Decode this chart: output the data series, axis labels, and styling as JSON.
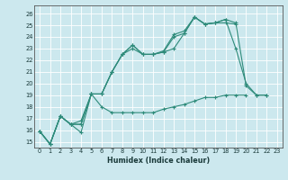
{
  "xlabel": "Humidex (Indice chaleur)",
  "bg_color": "#cce8ee",
  "line_color": "#2e8b7a",
  "grid_color": "#ffffff",
  "xlim": [
    -0.5,
    23.5
  ],
  "ylim": [
    14.5,
    26.7
  ],
  "xtick_labels": [
    "0",
    "1",
    "2",
    "3",
    "4",
    "5",
    "6",
    "7",
    "8",
    "9",
    "10",
    "11",
    "12",
    "13",
    "14",
    "15",
    "16",
    "17",
    "18",
    "19",
    "20",
    "21",
    "22",
    "23"
  ],
  "ytick_labels": [
    "15",
    "16",
    "17",
    "18",
    "19",
    "20",
    "21",
    "22",
    "23",
    "24",
    "25",
    "26"
  ],
  "series": [
    {
      "x": [
        0,
        1,
        2,
        3,
        4,
        5,
        6,
        7,
        8,
        9,
        10,
        11,
        12,
        13,
        14,
        15,
        16,
        17,
        18,
        19
      ],
      "y": [
        15.9,
        14.8,
        17.2,
        16.5,
        16.8,
        19.1,
        19.1,
        21.0,
        22.5,
        23.3,
        22.5,
        22.5,
        22.7,
        23.0,
        24.3,
        25.7,
        25.1,
        25.2,
        25.2,
        25.1
      ]
    },
    {
      "x": [
        0,
        1,
        2,
        3,
        4,
        5,
        6,
        7,
        8,
        9,
        10,
        11,
        12,
        13,
        14,
        15,
        16,
        17,
        18,
        19,
        20,
        21,
        22
      ],
      "y": [
        15.9,
        14.8,
        17.2,
        16.5,
        16.5,
        19.1,
        19.1,
        21.0,
        22.5,
        23.0,
        22.5,
        22.5,
        22.7,
        24.0,
        24.3,
        25.7,
        25.1,
        25.2,
        25.5,
        25.2,
        19.8,
        19.0,
        19.0
      ]
    },
    {
      "x": [
        0,
        1,
        2,
        3,
        4,
        5,
        6,
        7,
        8,
        9,
        10,
        11,
        12,
        13,
        14,
        15,
        16,
        17,
        18,
        19,
        20,
        21,
        22
      ],
      "y": [
        15.9,
        14.8,
        17.2,
        16.5,
        15.8,
        19.1,
        19.1,
        21.0,
        22.5,
        23.3,
        22.5,
        22.5,
        22.8,
        24.2,
        24.5,
        25.7,
        25.1,
        25.2,
        25.5,
        23.0,
        20.0,
        19.0,
        19.0
      ]
    },
    {
      "x": [
        0,
        1,
        2,
        3,
        4,
        5,
        6,
        7,
        8,
        9,
        10,
        11,
        12,
        13,
        14,
        15,
        16,
        17,
        18,
        19,
        20
      ],
      "y": [
        15.9,
        14.8,
        17.2,
        16.5,
        16.5,
        19.1,
        18.0,
        17.5,
        17.5,
        17.5,
        17.5,
        17.5,
        17.8,
        18.0,
        18.2,
        18.5,
        18.8,
        18.8,
        19.0,
        19.0,
        19.0
      ]
    }
  ]
}
